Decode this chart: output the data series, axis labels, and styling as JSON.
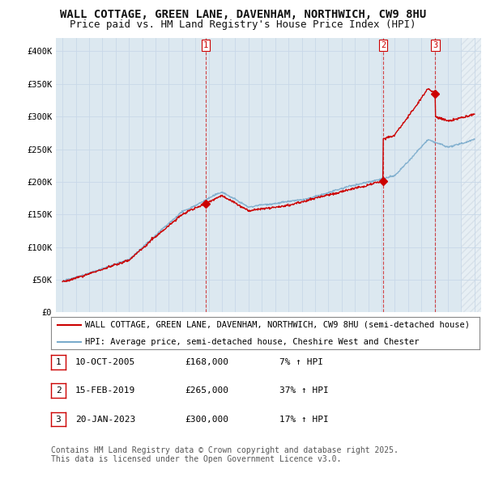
{
  "title": "WALL COTTAGE, GREEN LANE, DAVENHAM, NORTHWICH, CW9 8HU",
  "subtitle": "Price paid vs. HM Land Registry's House Price Index (HPI)",
  "background_color": "#ffffff",
  "grid_color": "#c8d8e8",
  "plot_bg": "#dce8f0",
  "xlabel": "",
  "ylabel": "",
  "ylim": [
    0,
    420000
  ],
  "xlim_start": 1994.5,
  "xlim_end": 2026.5,
  "yticks": [
    0,
    50000,
    100000,
    150000,
    200000,
    250000,
    300000,
    350000,
    400000
  ],
  "ytick_labels": [
    "£0",
    "£50K",
    "£100K",
    "£150K",
    "£200K",
    "£250K",
    "£300K",
    "£350K",
    "£400K"
  ],
  "sale_color": "#cc0000",
  "hpi_color": "#7aabcc",
  "dashed_color": "#cc0000",
  "hatch_color": "#c0ccd8",
  "transactions": [
    {
      "date": 2005.78,
      "price": 168000,
      "label": "1"
    },
    {
      "date": 2019.12,
      "price": 265000,
      "label": "2"
    },
    {
      "date": 2023.05,
      "price": 300000,
      "label": "3"
    }
  ],
  "transaction_table": [
    {
      "num": "1",
      "date": "10-OCT-2005",
      "price": "£168,000",
      "change": "7% ↑ HPI"
    },
    {
      "num": "2",
      "date": "15-FEB-2019",
      "price": "£265,000",
      "change": "37% ↑ HPI"
    },
    {
      "num": "3",
      "date": "20-JAN-2023",
      "price": "£300,000",
      "change": "17% ↑ HPI"
    }
  ],
  "legend_entries": [
    "WALL COTTAGE, GREEN LANE, DAVENHAM, NORTHWICH, CW9 8HU (semi-detached house)",
    "HPI: Average price, semi-detached house, Cheshire West and Chester"
  ],
  "footer": "Contains HM Land Registry data © Crown copyright and database right 2025.\nThis data is licensed under the Open Government Licence v3.0.",
  "title_fontsize": 10,
  "subtitle_fontsize": 9,
  "tick_fontsize": 7.5,
  "legend_fontsize": 8,
  "table_fontsize": 8,
  "footer_fontsize": 7
}
